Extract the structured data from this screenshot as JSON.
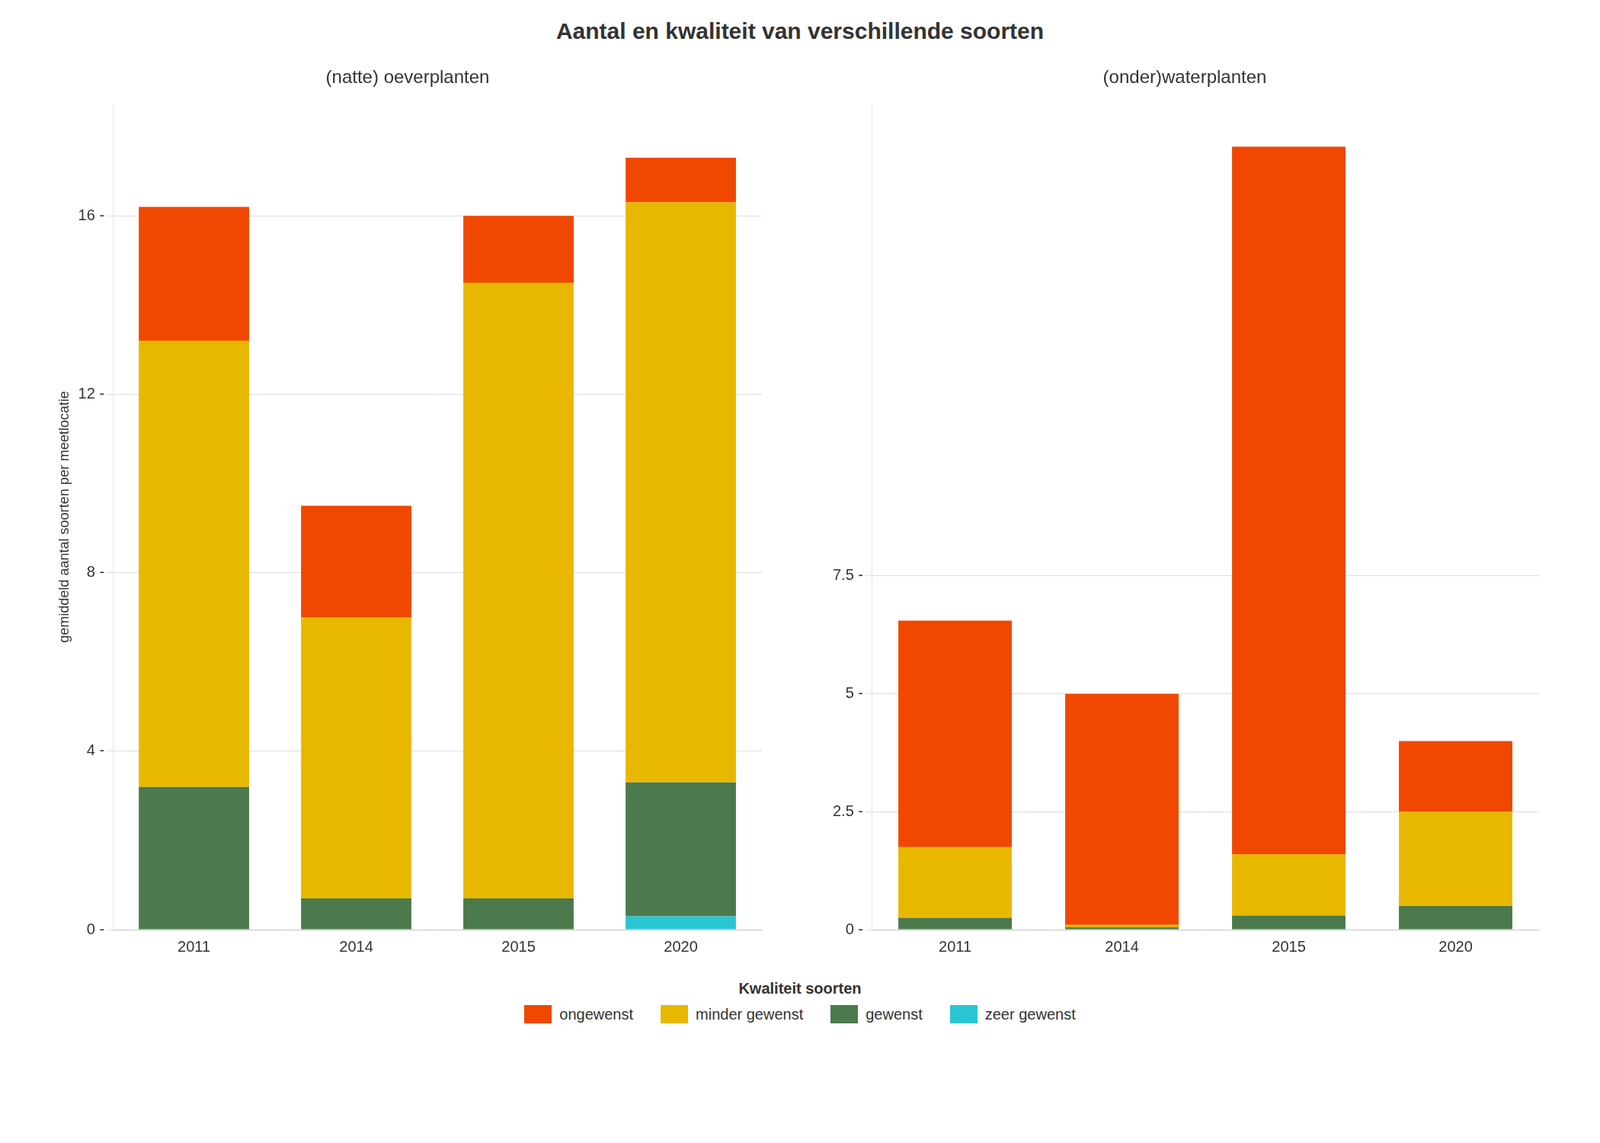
{
  "chart_data": [
    {
      "type": "bar",
      "title": "Aantal en kwaliteit van verschillende soorten",
      "subtitle": "(natte) oeverplanten",
      "ylabel": "gemiddeld aantal soorten per meetlocatie",
      "legend_title": "Kwaliteit soorten",
      "categories": [
        "2011",
        "2014",
        "2015",
        "2020"
      ],
      "series": [
        {
          "name": "zeer gewenst",
          "color": "#29C6D4",
          "values": [
            0,
            0,
            0,
            0.3
          ]
        },
        {
          "name": "gewenst",
          "color": "#4C7A4C",
          "values": [
            3.2,
            0.7,
            0.7,
            3.0
          ]
        },
        {
          "name": "minder gewenst",
          "color": "#E8B800",
          "values": [
            10.0,
            6.3,
            13.8,
            13.0
          ]
        },
        {
          "name": "ongewenst",
          "color": "#F04800",
          "values": [
            3.0,
            2.5,
            1.5,
            1.0
          ]
        }
      ],
      "ylim": [
        0,
        18.5
      ],
      "yticks": [
        {
          "value": 0,
          "label": "0 -"
        },
        {
          "value": 4,
          "label": "4 -"
        },
        {
          "value": 8,
          "label": "8 -"
        },
        {
          "value": 12,
          "label": "12 -"
        },
        {
          "value": 16,
          "label": "16 -"
        }
      ],
      "stacked": true,
      "grid": true,
      "legend": "bottom"
    },
    {
      "type": "bar",
      "title": "Aantal en kwaliteit van verschillende soorten",
      "subtitle": "(onder)waterplanten",
      "legend_title": "Kwaliteit soorten",
      "categories": [
        "2011",
        "2014",
        "2015",
        "2020"
      ],
      "series": [
        {
          "name": "zeer gewenst",
          "color": "#29C6D4",
          "values": [
            0,
            0,
            0,
            0
          ]
        },
        {
          "name": "gewenst",
          "color": "#4C7A4C",
          "values": [
            0.25,
            0.05,
            0.3,
            0.5
          ]
        },
        {
          "name": "minder gewenst",
          "color": "#E8B800",
          "values": [
            1.5,
            0.05,
            1.3,
            2.0
          ]
        },
        {
          "name": "ongewenst",
          "color": "#F04800",
          "values": [
            4.8,
            4.9,
            15.0,
            1.5
          ]
        }
      ],
      "ylim": [
        0,
        17.5
      ],
      "yticks": [
        {
          "value": 0,
          "label": "0 -"
        },
        {
          "value": 2.5,
          "label": "2.5 -"
        },
        {
          "value": 5.0,
          "label": "5 -"
        },
        {
          "value": 7.5,
          "label": "7.5 -"
        }
      ],
      "stacked": true,
      "grid": true,
      "legend": "bottom"
    }
  ]
}
